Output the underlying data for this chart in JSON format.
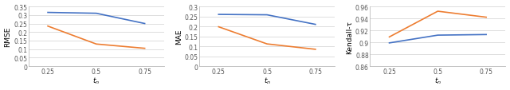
{
  "x": [
    0.25,
    0.5,
    0.75
  ],
  "rmse_blue": [
    0.315,
    0.31,
    0.25
  ],
  "rmse_orange": [
    0.235,
    0.13,
    0.105
  ],
  "mae_blue": [
    0.26,
    0.258,
    0.21
  ],
  "mae_orange": [
    0.198,
    0.112,
    0.085
  ],
  "kendall_blue": [
    0.899,
    0.912,
    0.913
  ],
  "kendall_orange": [
    0.909,
    0.952,
    0.942
  ],
  "blue_color": "#4472C4",
  "orange_color": "#ED7D31",
  "rmse_ylim": [
    0,
    0.35
  ],
  "rmse_yticks": [
    0,
    0.05,
    0.1,
    0.15,
    0.2,
    0.25,
    0.3,
    0.35
  ],
  "mae_ylim": [
    0,
    0.3
  ],
  "mae_yticks": [
    0,
    0.05,
    0.1,
    0.15,
    0.2,
    0.25,
    0.3
  ],
  "kendall_ylim": [
    0.86,
    0.96
  ],
  "kendall_yticks": [
    0.86,
    0.88,
    0.9,
    0.92,
    0.94,
    0.96
  ],
  "ylabel_rmse": "RMSE",
  "ylabel_mae": "MAE",
  "ylabel_kendall": "Kendall-τ",
  "xticks": [
    0.25,
    0.5,
    0.75
  ],
  "linewidth": 1.2,
  "tick_fontsize": 5.5,
  "label_fontsize": 6.5,
  "background_color": "#ffffff",
  "grid_color": "#d8d8d8",
  "spine_color": "#bbbbbb"
}
